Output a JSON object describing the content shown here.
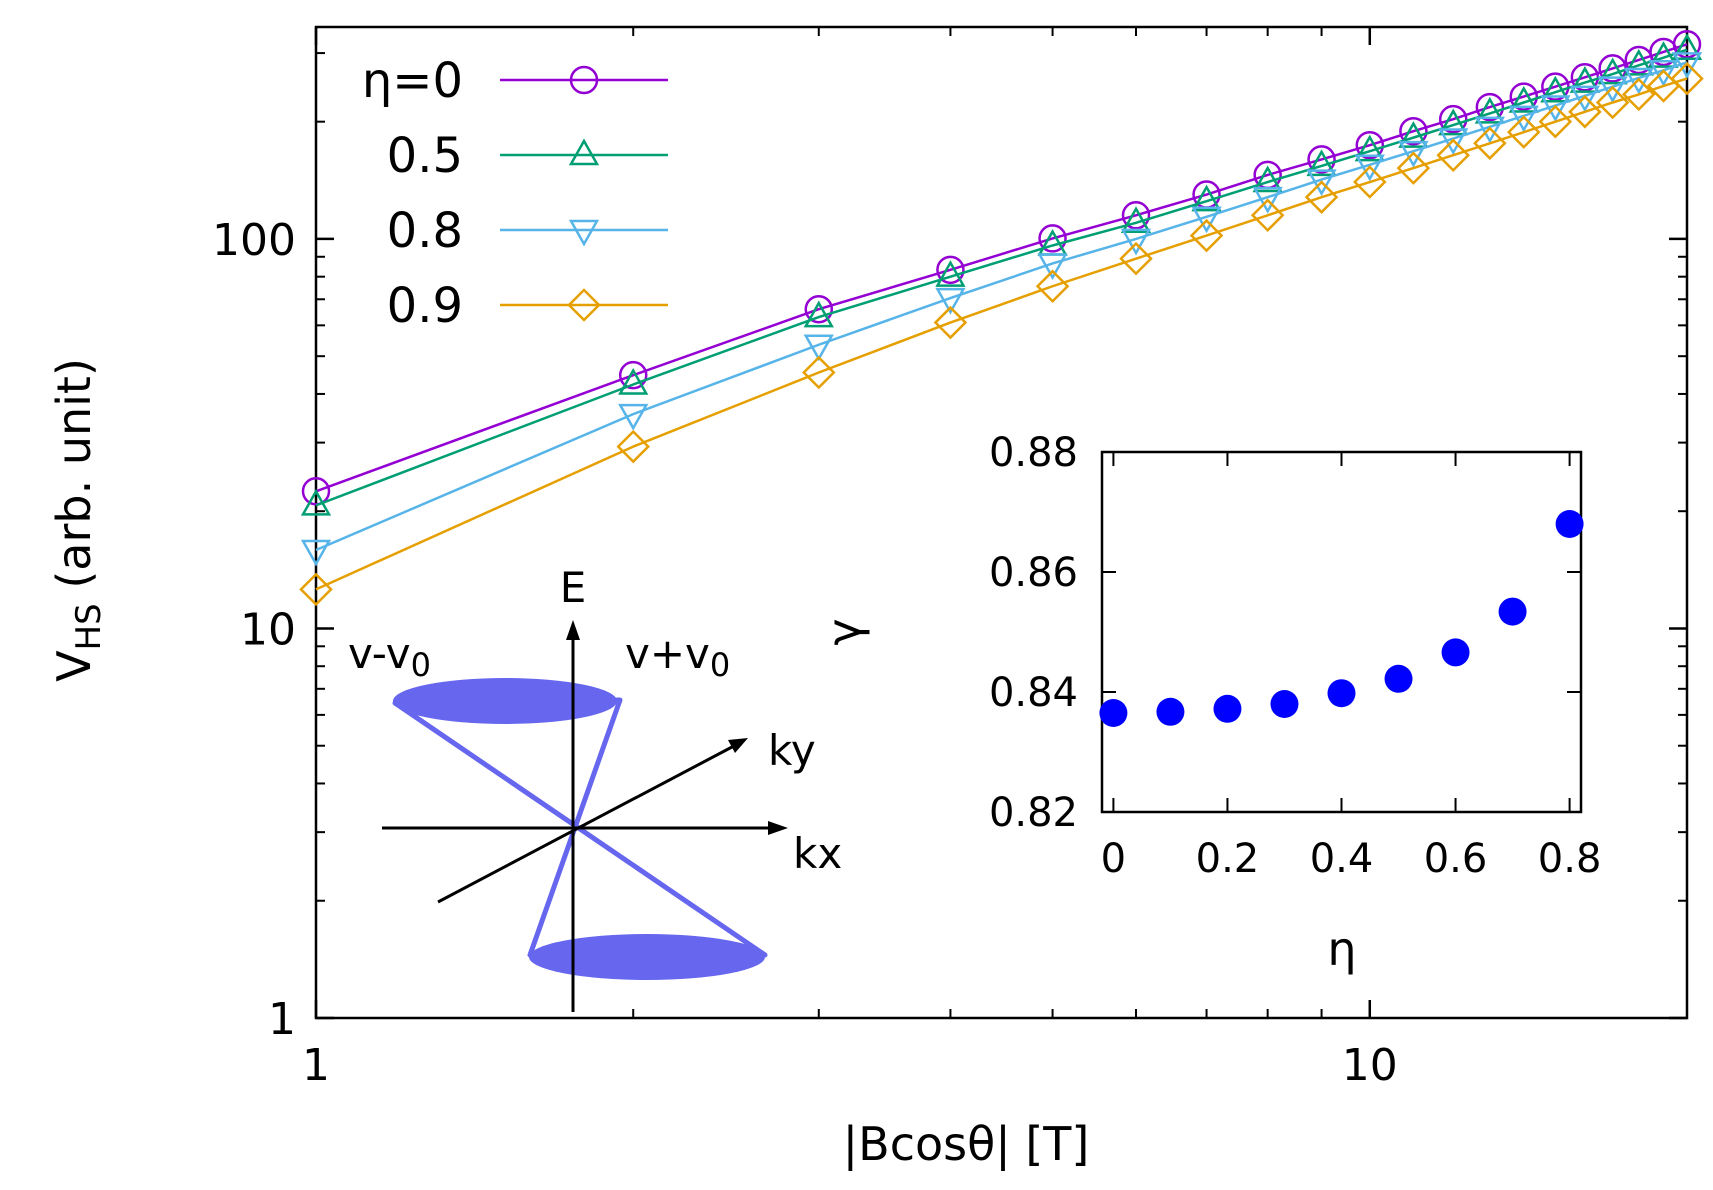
{
  "chart_data": [
    {
      "type": "line",
      "name": "main",
      "xscale": "log",
      "yscale": "log",
      "xlabel": "|Bcosθ| [T]",
      "ylabel_main": "V",
      "ylabel_sub": "HS",
      "ylabel_rest": " (arb. unit)",
      "xlim": [
        1,
        20
      ],
      "ylim": [
        1,
        350
      ],
      "xticks": [
        {
          "value": 1,
          "label": "1"
        },
        {
          "value": 10,
          "label": "10"
        }
      ],
      "yticks": [
        {
          "value": 1,
          "label": "1"
        },
        {
          "value": 10,
          "label": "10"
        },
        {
          "value": 100,
          "label": "100"
        }
      ],
      "legend_position": "top-left",
      "x": [
        1,
        2,
        3,
        4,
        5,
        6,
        7,
        8,
        9,
        10,
        11,
        12,
        13,
        14,
        15,
        16,
        17,
        18,
        19,
        20
      ],
      "series": [
        {
          "name": "η=0",
          "marker": "circle",
          "color": "#9400d3",
          "values": [
            22.5,
            44.7,
            66,
            83.3,
            100.3,
            115,
            130,
            146,
            160,
            174,
            189,
            203,
            218,
            232,
            246,
            260,
            274,
            288,
            302,
            316
          ]
        },
        {
          "name": "0.5",
          "marker": "triangle-up",
          "color": "#009e73",
          "values": [
            20.7,
            42.3,
            63,
            80,
            96.2,
            110,
            125,
            140,
            154,
            168,
            182,
            196,
            210,
            224,
            238,
            252,
            265,
            279,
            292,
            306
          ]
        },
        {
          "name": "0.8",
          "marker": "triangle-down",
          "color": "#56b4e9",
          "values": [
            15.9,
            35.5,
            53.5,
            70.5,
            86.5,
            100,
            114,
            128,
            142,
            155,
            168,
            181,
            194,
            207,
            220,
            233,
            246,
            259,
            271,
            284
          ]
        },
        {
          "name": "0.9",
          "marker": "diamond",
          "color": "#e69f00",
          "values": [
            12.6,
            29.3,
            45.4,
            61,
            75.6,
            89,
            102,
            115,
            128,
            140,
            152,
            164,
            176,
            188,
            200,
            212,
            224,
            235,
            247,
            258
          ]
        }
      ]
    },
    {
      "type": "scatter",
      "name": "inset",
      "xlabel": "η",
      "ylabel": "γ",
      "xlim": [
        0,
        0.8
      ],
      "ylim": [
        0.82,
        0.88
      ],
      "xticks": [
        {
          "value": 0,
          "label": "0"
        },
        {
          "value": 0.2,
          "label": "0.2"
        },
        {
          "value": 0.4,
          "label": "0.4"
        },
        {
          "value": 0.6,
          "label": "0.6"
        },
        {
          "value": 0.8,
          "label": "0.8"
        }
      ],
      "yticks": [
        {
          "value": 0.82,
          "label": "0.82"
        },
        {
          "value": 0.84,
          "label": "0.84"
        },
        {
          "value": 0.86,
          "label": "0.86"
        },
        {
          "value": 0.88,
          "label": "0.88"
        }
      ],
      "color": "#0000ff",
      "x": [
        0,
        0.1,
        0.2,
        0.3,
        0.4,
        0.5,
        0.6,
        0.7,
        0.8
      ],
      "y": [
        0.8365,
        0.8367,
        0.8372,
        0.838,
        0.8398,
        0.8422,
        0.8466,
        0.8534,
        0.868
      ]
    }
  ],
  "diagram": {
    "axis_e": "E",
    "axis_ky": "ky",
    "axis_kx": "kx",
    "label_left_main": "v-v",
    "label_left_sub": "0",
    "label_right_main": "v+v",
    "label_right_sub": "0",
    "cone_color": "#6666ee"
  }
}
